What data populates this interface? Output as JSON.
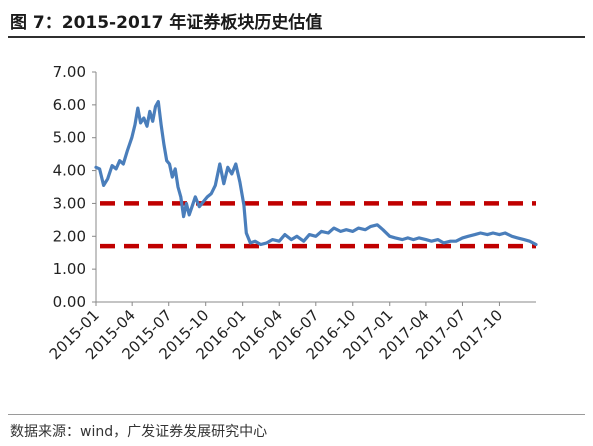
{
  "figure": {
    "title": "图 7：2015-2017 年证券板块历史估值",
    "source": "数据来源：wind，广发证券发展研究中心"
  },
  "chart_data": {
    "type": "line",
    "title": "",
    "xlabel": "",
    "ylabel": "",
    "ylim": [
      0,
      7
    ],
    "xlim": [
      "2015-01-01",
      "2017-12-31"
    ],
    "grid": false,
    "legend": "none",
    "y_ticks": [
      "7.00",
      "6.00",
      "5.00",
      "4.00",
      "3.00",
      "2.00",
      "1.00",
      "0.00"
    ],
    "y_tick_values": [
      7,
      6,
      5,
      4,
      3,
      2,
      1,
      0
    ],
    "x_tick_labels": [
      "2015-01",
      "2015-04",
      "2015-07",
      "2015-10",
      "2016-01",
      "2016-04",
      "2016-07",
      "2016-10",
      "2017-01",
      "2017-04",
      "2017-07",
      "2017-10"
    ],
    "x_tick_dates": [
      "2015-01-01",
      "2015-04-01",
      "2015-07-01",
      "2015-10-01",
      "2016-01-01",
      "2016-04-01",
      "2016-07-01",
      "2016-10-01",
      "2017-01-01",
      "2017-04-01",
      "2017-07-01",
      "2017-10-01"
    ],
    "series": [
      {
        "color": "#4a7ebb",
        "x": [
          "2015-01-01",
          "2015-01-10",
          "2015-01-20",
          "2015-01-30",
          "2015-02-10",
          "2015-02-20",
          "2015-03-01",
          "2015-03-10",
          "2015-03-20",
          "2015-03-31",
          "2015-04-08",
          "2015-04-15",
          "2015-04-22",
          "2015-04-30",
          "2015-05-08",
          "2015-05-15",
          "2015-05-22",
          "2015-05-29",
          "2015-06-05",
          "2015-06-12",
          "2015-06-19",
          "2015-06-26",
          "2015-07-03",
          "2015-07-10",
          "2015-07-17",
          "2015-07-24",
          "2015-07-31",
          "2015-08-07",
          "2015-08-14",
          "2015-08-21",
          "2015-08-28",
          "2015-09-05",
          "2015-09-15",
          "2015-09-25",
          "2015-10-05",
          "2015-10-15",
          "2015-10-25",
          "2015-11-05",
          "2015-11-15",
          "2015-11-25",
          "2015-12-05",
          "2015-12-15",
          "2015-12-25",
          "2016-01-04",
          "2016-01-10",
          "2016-01-20",
          "2016-02-01",
          "2016-02-15",
          "2016-03-01",
          "2016-03-15",
          "2016-04-01",
          "2016-04-15",
          "2016-05-01",
          "2016-05-15",
          "2016-06-01",
          "2016-06-15",
          "2016-07-01",
          "2016-07-15",
          "2016-08-01",
          "2016-08-15",
          "2016-09-01",
          "2016-09-15",
          "2016-10-01",
          "2016-10-15",
          "2016-11-01",
          "2016-11-15",
          "2016-12-01",
          "2016-12-15",
          "2017-01-01",
          "2017-01-15",
          "2017-02-01",
          "2017-02-15",
          "2017-03-01",
          "2017-03-15",
          "2017-04-01",
          "2017-04-15",
          "2017-05-01",
          "2017-05-15",
          "2017-06-01",
          "2017-06-15",
          "2017-07-01",
          "2017-07-15",
          "2017-08-01",
          "2017-08-15",
          "2017-09-01",
          "2017-09-15",
          "2017-10-01",
          "2017-10-15",
          "2017-11-01",
          "2017-11-15",
          "2017-12-01",
          "2017-12-15",
          "2017-12-31"
        ],
        "values": [
          4.1,
          4.05,
          3.55,
          3.75,
          4.15,
          4.05,
          4.3,
          4.2,
          4.6,
          5.0,
          5.4,
          5.9,
          5.45,
          5.6,
          5.35,
          5.8,
          5.5,
          5.95,
          6.1,
          5.4,
          4.8,
          4.3,
          4.2,
          3.8,
          4.05,
          3.5,
          3.2,
          2.6,
          3.0,
          2.65,
          2.9,
          3.2,
          2.9,
          3.05,
          3.2,
          3.3,
          3.55,
          4.2,
          3.6,
          4.1,
          3.9,
          4.2,
          3.65,
          2.95,
          2.1,
          1.8,
          1.85,
          1.75,
          1.8,
          1.9,
          1.85,
          2.05,
          1.9,
          2.0,
          1.85,
          2.05,
          2.0,
          2.15,
          2.1,
          2.25,
          2.15,
          2.2,
          2.15,
          2.25,
          2.2,
          2.3,
          2.35,
          2.2,
          2.0,
          1.95,
          1.9,
          1.95,
          1.9,
          1.95,
          1.9,
          1.85,
          1.9,
          1.8,
          1.85,
          1.85,
          1.95,
          2.0,
          2.05,
          2.1,
          2.05,
          2.1,
          2.05,
          2.1,
          2.0,
          1.95,
          1.9,
          1.85,
          1.75
        ]
      }
    ],
    "reference_lines": [
      {
        "y": 3.0,
        "color": "#c00000",
        "style": "dashed"
      },
      {
        "y": 1.7,
        "color": "#c00000",
        "style": "dashed"
      }
    ]
  }
}
